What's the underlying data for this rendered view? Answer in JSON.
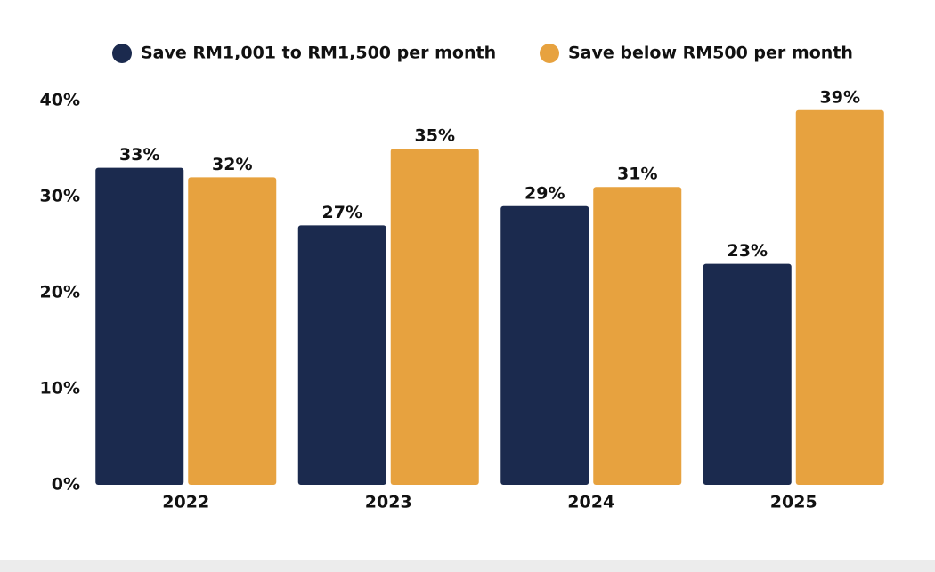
{
  "chart_data": {
    "type": "bar",
    "categories": [
      "2022",
      "2023",
      "2024",
      "2025"
    ],
    "series": [
      {
        "name": "Save RM1,001 to RM1,500 per month",
        "color": "#1b2a4e",
        "values": [
          33,
          27,
          29,
          23
        ],
        "value_labels": [
          "33%",
          "27%",
          "29%",
          "23%"
        ]
      },
      {
        "name": "Save below RM500 per month",
        "color": "#e7a23f",
        "values": [
          32,
          35,
          31,
          39
        ],
        "value_labels": [
          "32%",
          "35%",
          "31%",
          "39%"
        ]
      }
    ],
    "ylim": [
      0,
      40
    ],
    "yticks": [
      {
        "value": 0,
        "label": "0%"
      },
      {
        "value": 10,
        "label": "10%"
      },
      {
        "value": 20,
        "label": "20%"
      },
      {
        "value": 30,
        "label": "30%"
      },
      {
        "value": 40,
        "label": "40%"
      }
    ],
    "grid": false,
    "legend": "top"
  }
}
